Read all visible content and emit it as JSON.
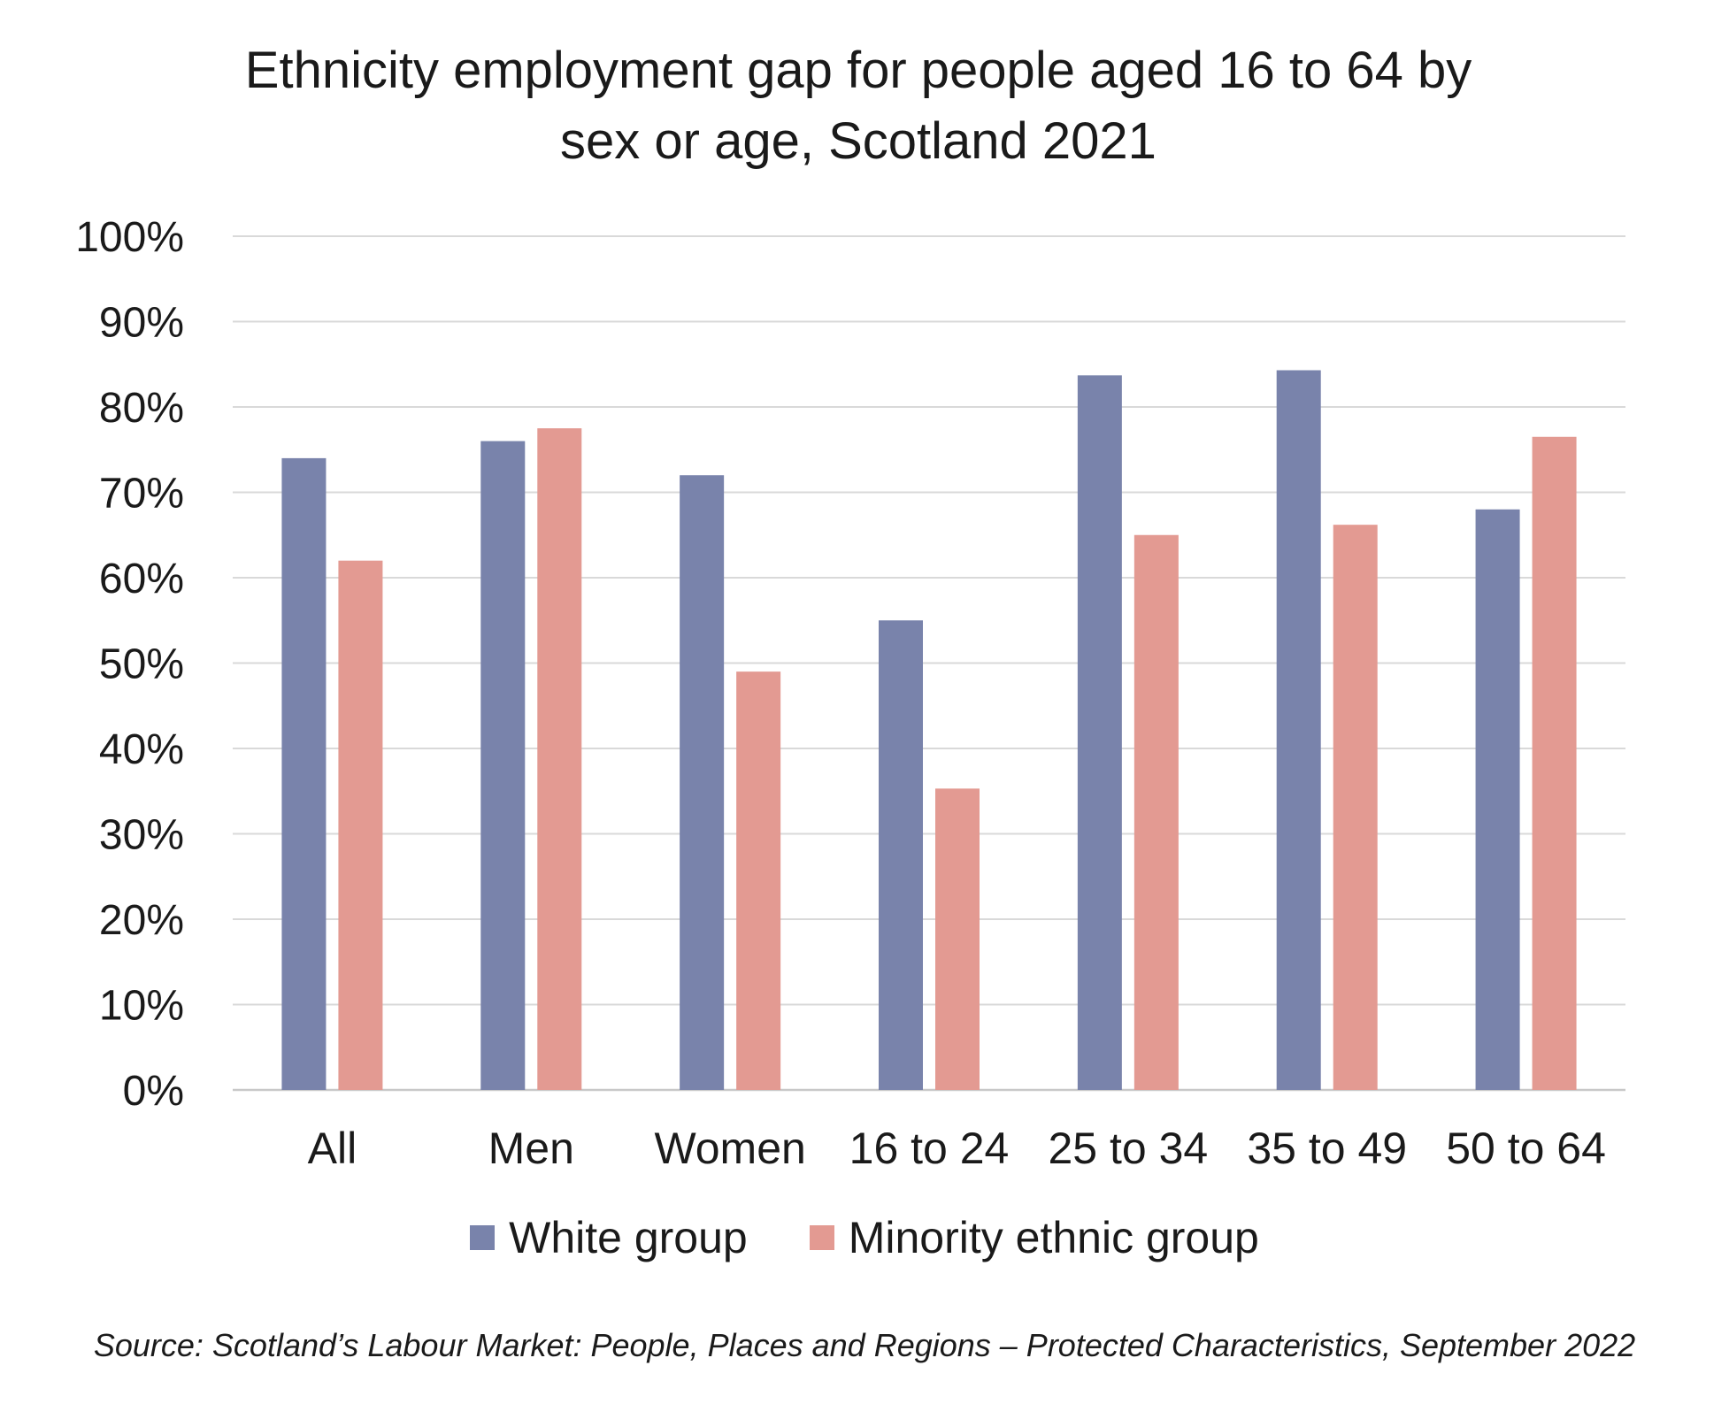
{
  "chart_data": {
    "type": "bar",
    "title": "Ethnicity employment gap for people aged 16 to 64 by sex or age, Scotland 2021",
    "xlabel": "",
    "ylabel": "",
    "categories": [
      "All",
      "Men",
      "Women",
      "16 to 24",
      "25 to 34",
      "35 to 49",
      "50 to 64"
    ],
    "series": [
      {
        "name": "White group",
        "values": [
          74,
          76,
          72,
          55,
          83.7,
          84.3,
          68
        ],
        "color": "#7983ab"
      },
      {
        "name": "Minority ethnic group",
        "values": [
          62,
          77.5,
          49,
          35.3,
          65,
          66.2,
          76.5
        ],
        "color": "#e39a92"
      }
    ],
    "ylim": [
      0,
      100
    ],
    "yticks": [
      0,
      10,
      20,
      30,
      40,
      50,
      60,
      70,
      80,
      90,
      100
    ],
    "ytick_labels": [
      "0%",
      "10%",
      "20%",
      "30%",
      "40%",
      "50%",
      "60%",
      "70%",
      "80%",
      "90%",
      "100%"
    ],
    "grid": true,
    "legend_position": "bottom"
  },
  "source": "Source: Scotland’s Labour Market: People, Places and Regions – Protected Characteristics, September 2022"
}
